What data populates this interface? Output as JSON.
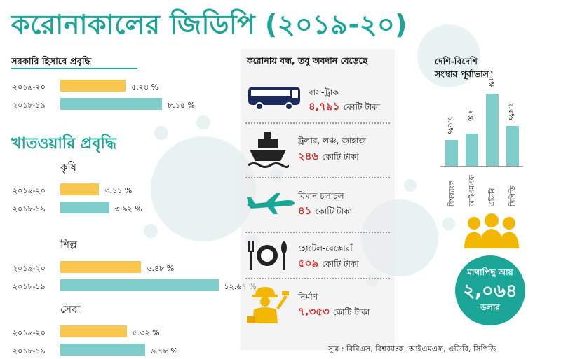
{
  "title": "করোনাকালের জিডিপি (২০১৯-২০)",
  "official_growth": {
    "heading": "সরকারি হিসাবে প্রবৃদ্ধি",
    "rows": [
      {
        "year": "২০১৯-২০",
        "label": "৫.২৪ %",
        "value": 5.24
      },
      {
        "year": "২০১৮-১৯",
        "label": "৮.১৫ %",
        "value": 8.15
      }
    ]
  },
  "sector_growth": {
    "heading": "খাতওয়ারি প্রবৃদ্ধি",
    "sectors": [
      {
        "name": "কৃষি",
        "rows": [
          {
            "year": "২০১৯-২০",
            "label": "৩.১১ %",
            "value": 3.11
          },
          {
            "year": "২০১৮-১৯",
            "label": "৩.৯২ %",
            "value": 3.92
          }
        ]
      },
      {
        "name": "শিল্প",
        "rows": [
          {
            "year": "২০১৯-২০",
            "label": "৬.৪৮ %",
            "value": 6.48
          },
          {
            "year": "২০১৮-১৯",
            "label": "১২.৬৭ %",
            "value": 12.67
          }
        ]
      },
      {
        "name": "সেবা",
        "rows": [
          {
            "year": "২০১৯-২০",
            "label": "৫.৩২ %",
            "value": 5.32
          },
          {
            "year": "২০১৮-১৯",
            "label": "৬.৭৮ %",
            "value": 6.78
          }
        ]
      }
    ]
  },
  "middle": {
    "heading": "করোনায় বন্ধ, তবু অবদান বেড়েছে",
    "items": [
      {
        "label": "বাস-ট্রাক",
        "amount": "৪,৭৯১",
        "unit": "কোটি টাকা",
        "icon": "bus-icon"
      },
      {
        "label": "ট্রলার, লঞ্চ, জাহাজ",
        "amount": "২৪৬",
        "unit": "কোটি টাকা",
        "icon": "ship-icon"
      },
      {
        "label": "বিমান চলাচল",
        "amount": "৪১",
        "unit": "কোটি টাকা",
        "icon": "airplane-icon"
      },
      {
        "label": "হোটেল-রেস্তোরাঁ",
        "amount": "৫০৯",
        "unit": "কোটি টাকা",
        "icon": "plate-cutlery-icon"
      },
      {
        "label": "নির্মাণ",
        "amount": "৭,৩৫৩",
        "unit": "কোটি টাকা",
        "icon": "construction-worker-icon"
      }
    ]
  },
  "forecast": {
    "heading_line1": "দেশি-বিদেশি",
    "heading_line2": "সংস্থার পূর্বাভাস",
    "bars": [
      {
        "org": "বিশ্বব্যাংক",
        "label": "১.৬%",
        "value": 1.6
      },
      {
        "org": "আইএমএফ",
        "label": "২%",
        "value": 2.0
      },
      {
        "org": "এডিবি",
        "label": "৪.৫%",
        "value": 4.5
      },
      {
        "org": "সিপিডি",
        "label": "২.৫%",
        "value": 2.5
      }
    ]
  },
  "per_capita": {
    "label": "মাথাপিছু আয়",
    "amount": "২,০৬৪",
    "unit": "ডলার"
  },
  "source": "সূত্র : বিবিএস, বিশ্বব্যাংক, আইএমএফ, এডিবি, সিপিডি",
  "colors": {
    "teal": "#1aa596",
    "bar_2019_20": "#f9c74f",
    "bar_2018_19": "#7fcdca",
    "amount_red": "#d62828"
  },
  "chart_data": [
    {
      "type": "bar",
      "title": "সরকারি হিসাবে প্রবৃদ্ধি",
      "categories": [
        "২০১৯-২০",
        "২০১৮-১৯"
      ],
      "values": [
        5.24,
        8.15
      ]
    },
    {
      "type": "bar",
      "title": "খাতওয়ারি প্রবৃদ্ধি",
      "categories": [
        "কৃষি",
        "শিল্প",
        "সেবা"
      ],
      "series": [
        {
          "name": "২০১৯-২০",
          "values": [
            3.11,
            6.48,
            5.32
          ]
        },
        {
          "name": "২০১৮-১৯",
          "values": [
            3.92,
            12.67,
            6.78
          ]
        }
      ]
    },
    {
      "type": "bar",
      "title": "দেশি-বিদেশি সংস্থার পূর্বাভাস",
      "categories": [
        "বিশ্বব্যাংক",
        "আইএমএফ",
        "এডিবি",
        "সিপিডি"
      ],
      "values": [
        1.6,
        2.0,
        4.5,
        2.5
      ]
    }
  ]
}
